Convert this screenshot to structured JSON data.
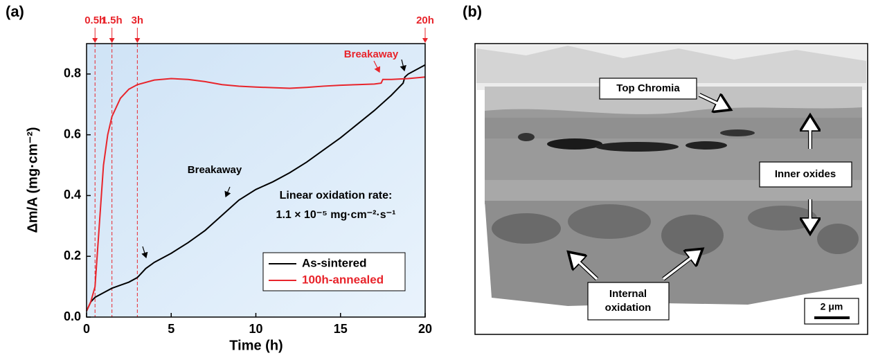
{
  "chart_data": {
    "type": "line",
    "panel_label": "(a)",
    "xlabel": "Time (h)",
    "ylabel": "Δm/A (mg·cm⁻²)",
    "xlim": [
      0,
      20
    ],
    "xticks": [
      0,
      5,
      10,
      15,
      20
    ],
    "ylim": [
      0,
      0.9
    ],
    "yticks": [
      {
        "value": 0,
        "label": "0.0"
      },
      0.2,
      0.4,
      0.6,
      0.8
    ],
    "markers": [
      {
        "x": 0.5,
        "label": "0.5h"
      },
      {
        "x": 1.5,
        "label": "1.5h"
      },
      {
        "x": 3,
        "label": "3h"
      },
      {
        "x": 20,
        "label": "20h"
      }
    ],
    "marker_color": "#e8242b",
    "annotations": [
      "Breakaway",
      "Breakaway",
      "Linear oxidation rate:",
      "1.1 × 10⁻⁵ mg·cm⁻²·s⁻¹"
    ],
    "series": [
      {
        "name": "As-sintered",
        "color": "#000000",
        "x": [
          0,
          0.25,
          0.5,
          1,
          1.5,
          2,
          2.5,
          3,
          3.5,
          4,
          5,
          6,
          7,
          8,
          8.5,
          9,
          10,
          11,
          12,
          13,
          14,
          15,
          16,
          17,
          18,
          18.7,
          18.8,
          19,
          20
        ],
        "values": [
          0.02,
          0.05,
          0.065,
          0.08,
          0.095,
          0.105,
          0.115,
          0.13,
          0.16,
          0.18,
          0.21,
          0.245,
          0.285,
          0.335,
          0.36,
          0.385,
          0.42,
          0.445,
          0.475,
          0.51,
          0.55,
          0.59,
          0.635,
          0.68,
          0.73,
          0.77,
          0.79,
          0.8,
          0.83
        ]
      },
      {
        "name": "100h-annealed",
        "color": "#e8242b",
        "x": [
          0,
          0.25,
          0.5,
          0.75,
          1,
          1.25,
          1.5,
          2,
          2.5,
          3,
          4,
          5,
          6,
          7,
          8,
          9,
          10,
          11,
          12,
          13,
          14,
          15,
          16,
          17,
          17.4,
          17.5,
          18,
          19,
          20
        ],
        "values": [
          0.02,
          0.05,
          0.1,
          0.3,
          0.5,
          0.6,
          0.66,
          0.72,
          0.75,
          0.765,
          0.78,
          0.785,
          0.782,
          0.775,
          0.765,
          0.76,
          0.757,
          0.755,
          0.753,
          0.756,
          0.76,
          0.763,
          0.765,
          0.767,
          0.77,
          0.782,
          0.782,
          0.785,
          0.79
        ]
      }
    ]
  },
  "image_panel": {
    "panel_label": "(b)",
    "top_chromia": "Top Chromia",
    "inner_oxides": "Inner oxides",
    "internal_oxidation": [
      "Internal",
      "oxidation"
    ],
    "scale_bar": "2 μm"
  }
}
